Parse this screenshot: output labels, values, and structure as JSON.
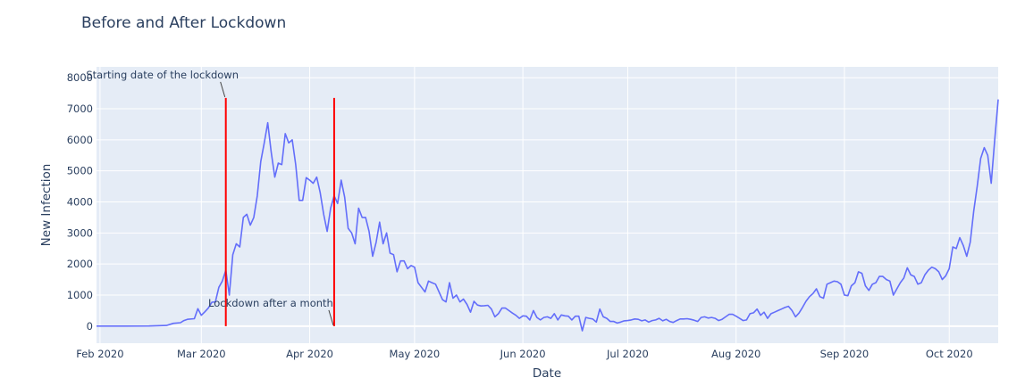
{
  "chart_data": {
    "type": "line",
    "title": "Before and After Lockdown",
    "xlabel": "Date",
    "ylabel": "New Infection",
    "x_axis_type": "date",
    "x_range": [
      "2020-01-31",
      "2020-10-13"
    ],
    "ylim": [
      -550,
      8350
    ],
    "grid": true,
    "y_ticks": [
      0,
      1000,
      2000,
      3000,
      4000,
      5000,
      6000,
      7000,
      8000
    ],
    "y_tick_labels": [
      "0",
      "1000",
      "2000",
      "3000",
      "4000",
      "5000",
      "6000",
      "7000",
      "8000"
    ],
    "x_ticks": [
      "2020-02-01",
      "2020-03-01",
      "2020-04-01",
      "2020-05-01",
      "2020-06-01",
      "2020-07-01",
      "2020-08-01",
      "2020-09-01",
      "2020-10-01"
    ],
    "x_tick_labels": [
      "Feb 2020",
      "Mar 2020",
      "Apr 2020",
      "May 2020",
      "Jun 2020",
      "Jul 2020",
      "Aug 2020",
      "Sep 2020",
      "Oct 2020"
    ],
    "colors": {
      "series": "#636efa",
      "markers": "#ff0000",
      "plot_bg": "#e5ecf6",
      "grid": "#ffffff",
      "text": "#2a3f5f"
    },
    "series": [
      {
        "color": "#636efa",
        "points": [
          [
            "2020-01-31",
            0
          ],
          [
            "2020-02-08",
            0
          ],
          [
            "2020-02-15",
            5
          ],
          [
            "2020-02-20",
            20
          ],
          [
            "2020-02-22",
            90
          ],
          [
            "2020-02-24",
            110
          ],
          [
            "2020-02-25",
            180
          ],
          [
            "2020-02-26",
            220
          ],
          [
            "2020-02-28",
            240
          ],
          [
            "2020-02-29",
            560
          ],
          [
            "2020-03-01",
            350
          ],
          [
            "2020-03-02",
            460
          ],
          [
            "2020-03-03",
            580
          ],
          [
            "2020-03-04",
            770
          ],
          [
            "2020-03-05",
            780
          ],
          [
            "2020-03-06",
            1250
          ],
          [
            "2020-03-07",
            1450
          ],
          [
            "2020-03-08",
            1800
          ],
          [
            "2020-03-09",
            1000
          ],
          [
            "2020-03-10",
            2300
          ],
          [
            "2020-03-11",
            2650
          ],
          [
            "2020-03-12",
            2550
          ],
          [
            "2020-03-13",
            3500
          ],
          [
            "2020-03-14",
            3600
          ],
          [
            "2020-03-15",
            3250
          ],
          [
            "2020-03-16",
            3500
          ],
          [
            "2020-03-17",
            4200
          ],
          [
            "2020-03-18",
            5300
          ],
          [
            "2020-03-19",
            5900
          ],
          [
            "2020-03-20",
            6550
          ],
          [
            "2020-03-21",
            5600
          ],
          [
            "2020-03-22",
            4800
          ],
          [
            "2020-03-23",
            5250
          ],
          [
            "2020-03-24",
            5200
          ],
          [
            "2020-03-25",
            6200
          ],
          [
            "2020-03-26",
            5900
          ],
          [
            "2020-03-27",
            6000
          ],
          [
            "2020-03-28",
            5200
          ],
          [
            "2020-03-29",
            4050
          ],
          [
            "2020-03-30",
            4050
          ],
          [
            "2020-03-31",
            4780
          ],
          [
            "2020-04-01",
            4700
          ],
          [
            "2020-04-02",
            4600
          ],
          [
            "2020-04-03",
            4800
          ],
          [
            "2020-04-04",
            4300
          ],
          [
            "2020-04-05",
            3600
          ],
          [
            "2020-04-06",
            3050
          ],
          [
            "2020-04-07",
            3800
          ],
          [
            "2020-04-08",
            4200
          ],
          [
            "2020-04-09",
            3950
          ],
          [
            "2020-04-10",
            4700
          ],
          [
            "2020-04-11",
            4150
          ],
          [
            "2020-04-12",
            3150
          ],
          [
            "2020-04-13",
            3000
          ],
          [
            "2020-04-14",
            2650
          ],
          [
            "2020-04-15",
            3800
          ],
          [
            "2020-04-16",
            3500
          ],
          [
            "2020-04-17",
            3500
          ],
          [
            "2020-04-18",
            3050
          ],
          [
            "2020-04-19",
            2250
          ],
          [
            "2020-04-20",
            2700
          ],
          [
            "2020-04-21",
            3350
          ],
          [
            "2020-04-22",
            2650
          ],
          [
            "2020-04-23",
            3000
          ],
          [
            "2020-04-24",
            2350
          ],
          [
            "2020-04-25",
            2300
          ],
          [
            "2020-04-26",
            1750
          ],
          [
            "2020-04-27",
            2100
          ],
          [
            "2020-04-28",
            2100
          ],
          [
            "2020-04-29",
            1850
          ],
          [
            "2020-04-30",
            1950
          ],
          [
            "2020-05-01",
            1900
          ],
          [
            "2020-05-02",
            1400
          ],
          [
            "2020-05-03",
            1250
          ],
          [
            "2020-05-04",
            1100
          ],
          [
            "2020-05-05",
            1450
          ],
          [
            "2020-05-06",
            1400
          ],
          [
            "2020-05-07",
            1350
          ],
          [
            "2020-05-08",
            1100
          ],
          [
            "2020-05-09",
            850
          ],
          [
            "2020-05-10",
            780
          ],
          [
            "2020-05-11",
            1400
          ],
          [
            "2020-05-12",
            900
          ],
          [
            "2020-05-13",
            1000
          ],
          [
            "2020-05-14",
            780
          ],
          [
            "2020-05-15",
            870
          ],
          [
            "2020-05-16",
            700
          ],
          [
            "2020-05-17",
            450
          ],
          [
            "2020-05-18",
            800
          ],
          [
            "2020-05-19",
            680
          ],
          [
            "2020-05-20",
            650
          ],
          [
            "2020-05-21",
            660
          ],
          [
            "2020-05-22",
            670
          ],
          [
            "2020-05-23",
            550
          ],
          [
            "2020-05-24",
            300
          ],
          [
            "2020-05-25",
            400
          ],
          [
            "2020-05-26",
            580
          ],
          [
            "2020-05-27",
            580
          ],
          [
            "2020-05-28",
            500
          ],
          [
            "2020-05-29",
            420
          ],
          [
            "2020-05-30",
            350
          ],
          [
            "2020-05-31",
            250
          ],
          [
            "2020-06-01",
            330
          ],
          [
            "2020-06-02",
            320
          ],
          [
            "2020-06-03",
            200
          ],
          [
            "2020-06-04",
            500
          ],
          [
            "2020-06-05",
            280
          ],
          [
            "2020-06-06",
            200
          ],
          [
            "2020-06-07",
            280
          ],
          [
            "2020-06-08",
            300
          ],
          [
            "2020-06-09",
            250
          ],
          [
            "2020-06-10",
            400
          ],
          [
            "2020-06-11",
            200
          ],
          [
            "2020-06-12",
            360
          ],
          [
            "2020-06-13",
            330
          ],
          [
            "2020-06-14",
            320
          ],
          [
            "2020-06-15",
            200
          ],
          [
            "2020-06-16",
            320
          ],
          [
            "2020-06-17",
            320
          ],
          [
            "2020-06-18",
            -150
          ],
          [
            "2020-06-19",
            280
          ],
          [
            "2020-06-20",
            250
          ],
          [
            "2020-06-21",
            230
          ],
          [
            "2020-06-22",
            130
          ],
          [
            "2020-06-23",
            550
          ],
          [
            "2020-06-24",
            300
          ],
          [
            "2020-06-25",
            250
          ],
          [
            "2020-06-26",
            150
          ],
          [
            "2020-06-27",
            150
          ],
          [
            "2020-06-28",
            100
          ],
          [
            "2020-06-29",
            130
          ],
          [
            "2020-06-30",
            170
          ],
          [
            "2020-07-01",
            180
          ],
          [
            "2020-07-02",
            200
          ],
          [
            "2020-07-03",
            230
          ],
          [
            "2020-07-04",
            220
          ],
          [
            "2020-07-05",
            170
          ],
          [
            "2020-07-06",
            200
          ],
          [
            "2020-07-07",
            130
          ],
          [
            "2020-07-08",
            180
          ],
          [
            "2020-07-09",
            200
          ],
          [
            "2020-07-10",
            250
          ],
          [
            "2020-07-11",
            170
          ],
          [
            "2020-07-12",
            220
          ],
          [
            "2020-07-13",
            150
          ],
          [
            "2020-07-14",
            120
          ],
          [
            "2020-07-15",
            180
          ],
          [
            "2020-07-16",
            230
          ],
          [
            "2020-07-17",
            230
          ],
          [
            "2020-07-18",
            240
          ],
          [
            "2020-07-19",
            220
          ],
          [
            "2020-07-20",
            190
          ],
          [
            "2020-07-21",
            150
          ],
          [
            "2020-07-22",
            280
          ],
          [
            "2020-07-23",
            300
          ],
          [
            "2020-07-24",
            260
          ],
          [
            "2020-07-25",
            280
          ],
          [
            "2020-07-26",
            250
          ],
          [
            "2020-07-27",
            180
          ],
          [
            "2020-07-28",
            220
          ],
          [
            "2020-07-29",
            300
          ],
          [
            "2020-07-30",
            380
          ],
          [
            "2020-07-31",
            380
          ],
          [
            "2020-08-01",
            320
          ],
          [
            "2020-08-02",
            250
          ],
          [
            "2020-08-03",
            180
          ],
          [
            "2020-08-04",
            200
          ],
          [
            "2020-08-05",
            400
          ],
          [
            "2020-08-06",
            430
          ],
          [
            "2020-08-07",
            550
          ],
          [
            "2020-08-08",
            350
          ],
          [
            "2020-08-09",
            450
          ],
          [
            "2020-08-10",
            250
          ],
          [
            "2020-08-11",
            400
          ],
          [
            "2020-08-12",
            450
          ],
          [
            "2020-08-13",
            500
          ],
          [
            "2020-08-14",
            550
          ],
          [
            "2020-08-15",
            600
          ],
          [
            "2020-08-16",
            640
          ],
          [
            "2020-08-17",
            500
          ],
          [
            "2020-08-18",
            300
          ],
          [
            "2020-08-19",
            420
          ],
          [
            "2020-08-20",
            600
          ],
          [
            "2020-08-21",
            800
          ],
          [
            "2020-08-22",
            950
          ],
          [
            "2020-08-23",
            1050
          ],
          [
            "2020-08-24",
            1200
          ],
          [
            "2020-08-25",
            950
          ],
          [
            "2020-08-26",
            900
          ],
          [
            "2020-08-27",
            1350
          ],
          [
            "2020-08-28",
            1400
          ],
          [
            "2020-08-29",
            1450
          ],
          [
            "2020-08-30",
            1430
          ],
          [
            "2020-08-31",
            1350
          ],
          [
            "2020-09-01",
            1000
          ],
          [
            "2020-09-02",
            980
          ],
          [
            "2020-09-03",
            1300
          ],
          [
            "2020-09-04",
            1400
          ],
          [
            "2020-09-05",
            1750
          ],
          [
            "2020-09-06",
            1700
          ],
          [
            "2020-09-07",
            1300
          ],
          [
            "2020-09-08",
            1150
          ],
          [
            "2020-09-09",
            1350
          ],
          [
            "2020-09-10",
            1400
          ],
          [
            "2020-09-11",
            1600
          ],
          [
            "2020-09-12",
            1600
          ],
          [
            "2020-09-13",
            1500
          ],
          [
            "2020-09-14",
            1450
          ],
          [
            "2020-09-15",
            1000
          ],
          [
            "2020-09-16",
            1200
          ],
          [
            "2020-09-17",
            1400
          ],
          [
            "2020-09-18",
            1550
          ],
          [
            "2020-09-19",
            1880
          ],
          [
            "2020-09-20",
            1650
          ],
          [
            "2020-09-21",
            1600
          ],
          [
            "2020-09-22",
            1350
          ],
          [
            "2020-09-23",
            1400
          ],
          [
            "2020-09-24",
            1650
          ],
          [
            "2020-09-25",
            1800
          ],
          [
            "2020-09-26",
            1900
          ],
          [
            "2020-09-27",
            1850
          ],
          [
            "2020-09-28",
            1750
          ],
          [
            "2020-09-29",
            1500
          ],
          [
            "2020-09-30",
            1620
          ],
          [
            "2020-10-01",
            1850
          ],
          [
            "2020-10-02",
            2550
          ],
          [
            "2020-10-03",
            2500
          ],
          [
            "2020-10-04",
            2850
          ],
          [
            "2020-10-05",
            2600
          ],
          [
            "2020-10-06",
            2250
          ],
          [
            "2020-10-07",
            2700
          ],
          [
            "2020-10-08",
            3700
          ],
          [
            "2020-10-09",
            4500
          ],
          [
            "2020-10-10",
            5400
          ],
          [
            "2020-10-11",
            5750
          ],
          [
            "2020-10-12",
            5500
          ],
          [
            "2020-10-13",
            4600
          ],
          [
            "2020-10-14",
            6000
          ],
          [
            "2020-10-15",
            7300
          ]
        ]
      }
    ],
    "vertical_lines": [
      {
        "x": "2020-03-08",
        "y_from": 0,
        "y_to": 7350,
        "color": "#ff0000"
      },
      {
        "x": "2020-04-08",
        "y_from": 0,
        "y_to": 7350,
        "color": "#ff0000"
      }
    ],
    "annotations": [
      {
        "text": "Starting date of the lockdown",
        "x": "2020-03-08",
        "y": 7350,
        "position": "above-left"
      },
      {
        "text": "Lockdown after a month",
        "x": "2020-04-08",
        "y": 0,
        "position": "above-left"
      }
    ]
  }
}
